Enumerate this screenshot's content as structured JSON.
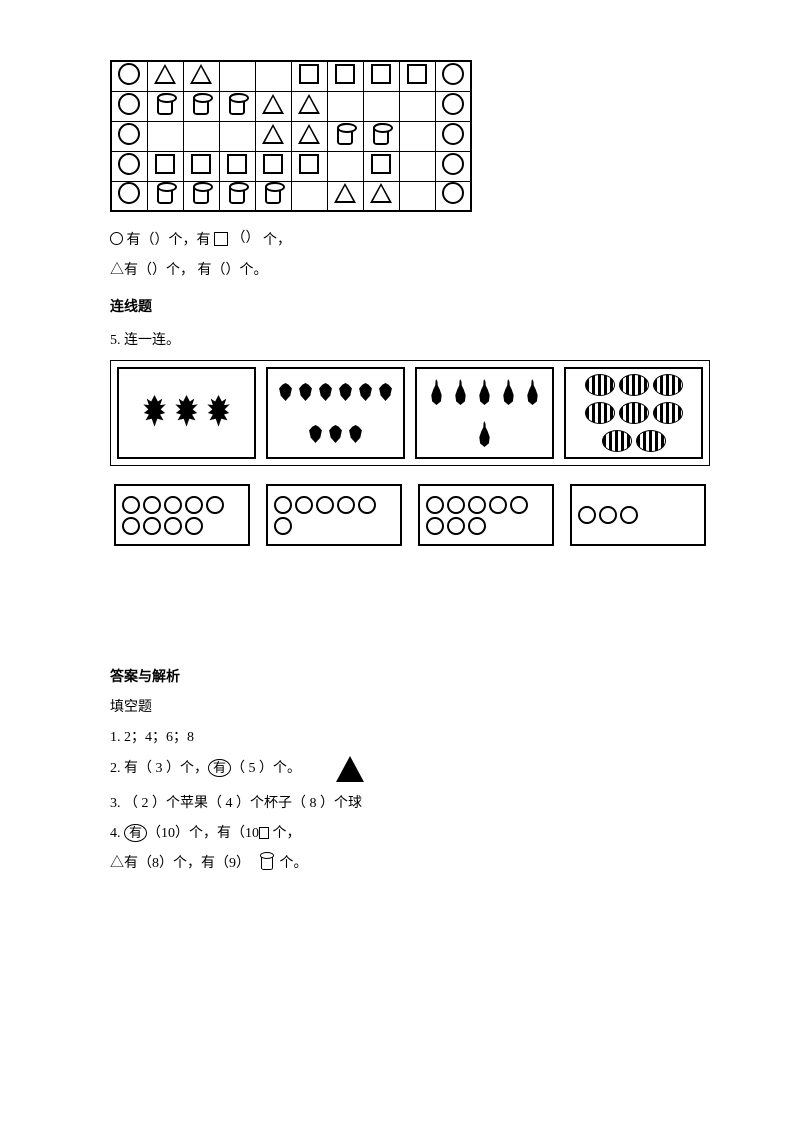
{
  "shape_grid": {
    "rows": 5,
    "cols": 10,
    "cells": [
      [
        "circ",
        "tri",
        "tri",
        "",
        "",
        "sq",
        "sq",
        "sq",
        "sq",
        "circ"
      ],
      [
        "circ",
        "cyl",
        "cyl",
        "cyl",
        "tri",
        "tri",
        "",
        "",
        "",
        "circ"
      ],
      [
        "circ",
        "",
        "",
        "",
        "tri",
        "tri",
        "cyl",
        "cyl",
        "",
        "circ"
      ],
      [
        "circ",
        "sq",
        "sq",
        "sq",
        "sq",
        "sq",
        "",
        "sq",
        "",
        "circ"
      ],
      [
        "circ",
        "cyl",
        "cyl",
        "cyl",
        "cyl",
        "",
        "tri",
        "tri",
        "",
        "circ"
      ]
    ]
  },
  "q4": {
    "line1a": "有（）个，有",
    "line1b": "个，",
    "line2": "△有（）个，    有（）个。"
  },
  "matching": {
    "heading": "连线题",
    "prompt": "5. 连一连。",
    "fruit_boxes": [
      {
        "type": "pineapple",
        "count": 3
      },
      {
        "type": "strawberry",
        "count": 9
      },
      {
        "type": "pear",
        "count": 6
      },
      {
        "type": "watermelon",
        "count": 8
      }
    ],
    "circle_boxes": [
      9,
      6,
      8,
      3
    ]
  },
  "answers": {
    "heading": "答案与解析",
    "sub": "填空题",
    "a1": "1. 2；4；6；8",
    "a2_pre": "2.  有（ 3 ）个，",
    "a2_enc": "有",
    "a2_post": "（ 5 ）个。",
    "a3": "3.  （ 2 ）个苹果（ 4 ）个杯子（ 8 ）个球",
    "a4_pre": "4.  ",
    "a4_enc1": "有",
    "a4_mid": "（10）个，有（10",
    "a4_post": "个，",
    "a5_pre": "△有（8）个，有（9）",
    "a5_post": "个。"
  }
}
